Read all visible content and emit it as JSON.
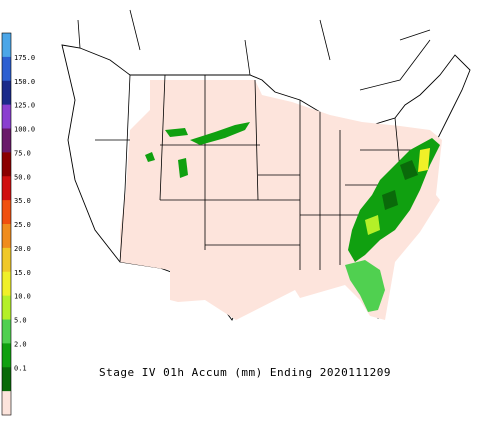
{
  "legend": {
    "labels": [
      "175.0",
      "150.0",
      "125.0",
      "100.0",
      "75.0",
      "50.0",
      "35.0",
      "25.0",
      "20.0",
      "15.0",
      "10.0",
      "5.0",
      "2.0",
      "0.1"
    ],
    "colors": [
      "#4ba6e8",
      "#2c5fd1",
      "#1a2a8a",
      "#8a3fd0",
      "#6a1a6a",
      "#8b0000",
      "#d01010",
      "#f05010",
      "#f08c1e",
      "#f0c828",
      "#f0f028",
      "#b4f028",
      "#50d050",
      "#10a010",
      "#0a6a0a",
      "#fde4dc"
    ]
  },
  "caption": "Stage IV 01h Accum (mm) Ending 2020111209"
}
